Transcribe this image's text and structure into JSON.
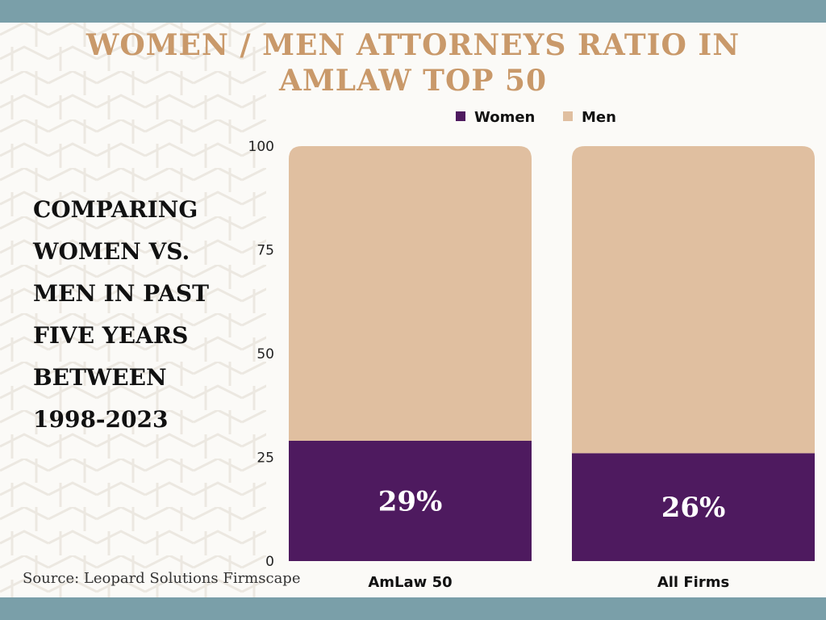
{
  "page": {
    "title": "WOMEN / MEN ATTORNEYS RATIO IN AMLAW TOP 50",
    "side_text": "COMPARING WOMEN VS. MEN IN PAST FIVE YEARS BETWEEN 1998-2023",
    "source": "Source: Leopard Solutions Firmscape"
  },
  "colors": {
    "band": "#7a9fa9",
    "title": "#c9996a",
    "women": "#4e1a5f",
    "men": "#e0bfa0"
  },
  "chart_data": {
    "type": "bar",
    "stacked": true,
    "categories": [
      "AmLaw 50",
      "All Firms"
    ],
    "series": [
      {
        "name": "Women",
        "values": [
          29,
          26
        ],
        "labels": [
          "29%",
          "26%"
        ]
      },
      {
        "name": "Men",
        "values": [
          71,
          74
        ]
      }
    ],
    "ylim": [
      0,
      100
    ],
    "yticks": [
      0,
      25,
      50,
      75,
      100
    ],
    "legend": "top",
    "grid": false
  }
}
